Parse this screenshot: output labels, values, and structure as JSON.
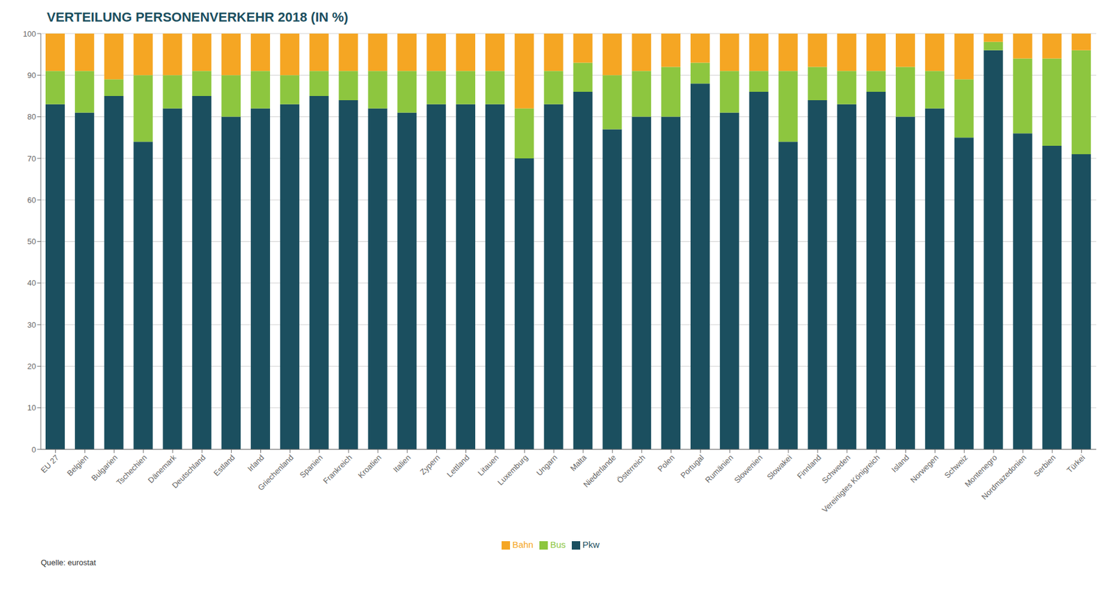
{
  "chart_data": {
    "type": "bar",
    "title": "VERTEILUNG PERSONENVERKEHR 2018 (IN %)",
    "categories": [
      "EU 27",
      "Belgien",
      "Bulgarien",
      "Tschechien",
      "Dänemark",
      "Deutschland",
      "Estland",
      "Irland",
      "Griechenland",
      "Spanien",
      "Frankreich",
      "Kroatien",
      "Italien",
      "Zypern",
      "Lettland",
      "Litauen",
      "Luxemburg",
      "Ungarn",
      "Malta",
      "Niederlande",
      "Österreich",
      "Polen",
      "Portugal",
      "Rumänien",
      "Slowenien",
      "Slowakei",
      "Finnland",
      "Schweden",
      "Vereinigtes Königreich",
      "Island",
      "Norwegen",
      "Schweiz",
      "Montenegro",
      "Nordmazedonien",
      "Serbien",
      "Türkei"
    ],
    "series": [
      {
        "name": "Pkw",
        "color": "#1b4f5f",
        "values": [
          83,
          81,
          85,
          74,
          82,
          85,
          80,
          82,
          83,
          85,
          84,
          82,
          81,
          83,
          83,
          83,
          70,
          83,
          86,
          77,
          80,
          80,
          88,
          81,
          86,
          74,
          84,
          83,
          86,
          80,
          82,
          75,
          96,
          76,
          73,
          71
        ]
      },
      {
        "name": "Bus",
        "color": "#8dc63f",
        "values": [
          8,
          10,
          4,
          16,
          8,
          6,
          10,
          9,
          7,
          6,
          7,
          9,
          10,
          8,
          8,
          8,
          12,
          8,
          7,
          13,
          11,
          12,
          5,
          10,
          5,
          17,
          8,
          8,
          5,
          12,
          9,
          14,
          2,
          18,
          21,
          25
        ]
      },
      {
        "name": "Bahn",
        "color": "#f5a623",
        "values": [
          9,
          9,
          11,
          10,
          10,
          9,
          10,
          9,
          10,
          9,
          9,
          9,
          9,
          9,
          9,
          9,
          18,
          9,
          7,
          10,
          9,
          8,
          7,
          9,
          9,
          9,
          8,
          9,
          9,
          8,
          9,
          11,
          2,
          6,
          6,
          4
        ]
      }
    ],
    "stacked": true,
    "ylim": [
      0,
      100
    ],
    "yticks": [
      0,
      10,
      20,
      30,
      40,
      50,
      60,
      70,
      80,
      90,
      100
    ],
    "grid": true,
    "legend": "bottom",
    "annotations": [
      "Quelle: eurostat"
    ]
  }
}
